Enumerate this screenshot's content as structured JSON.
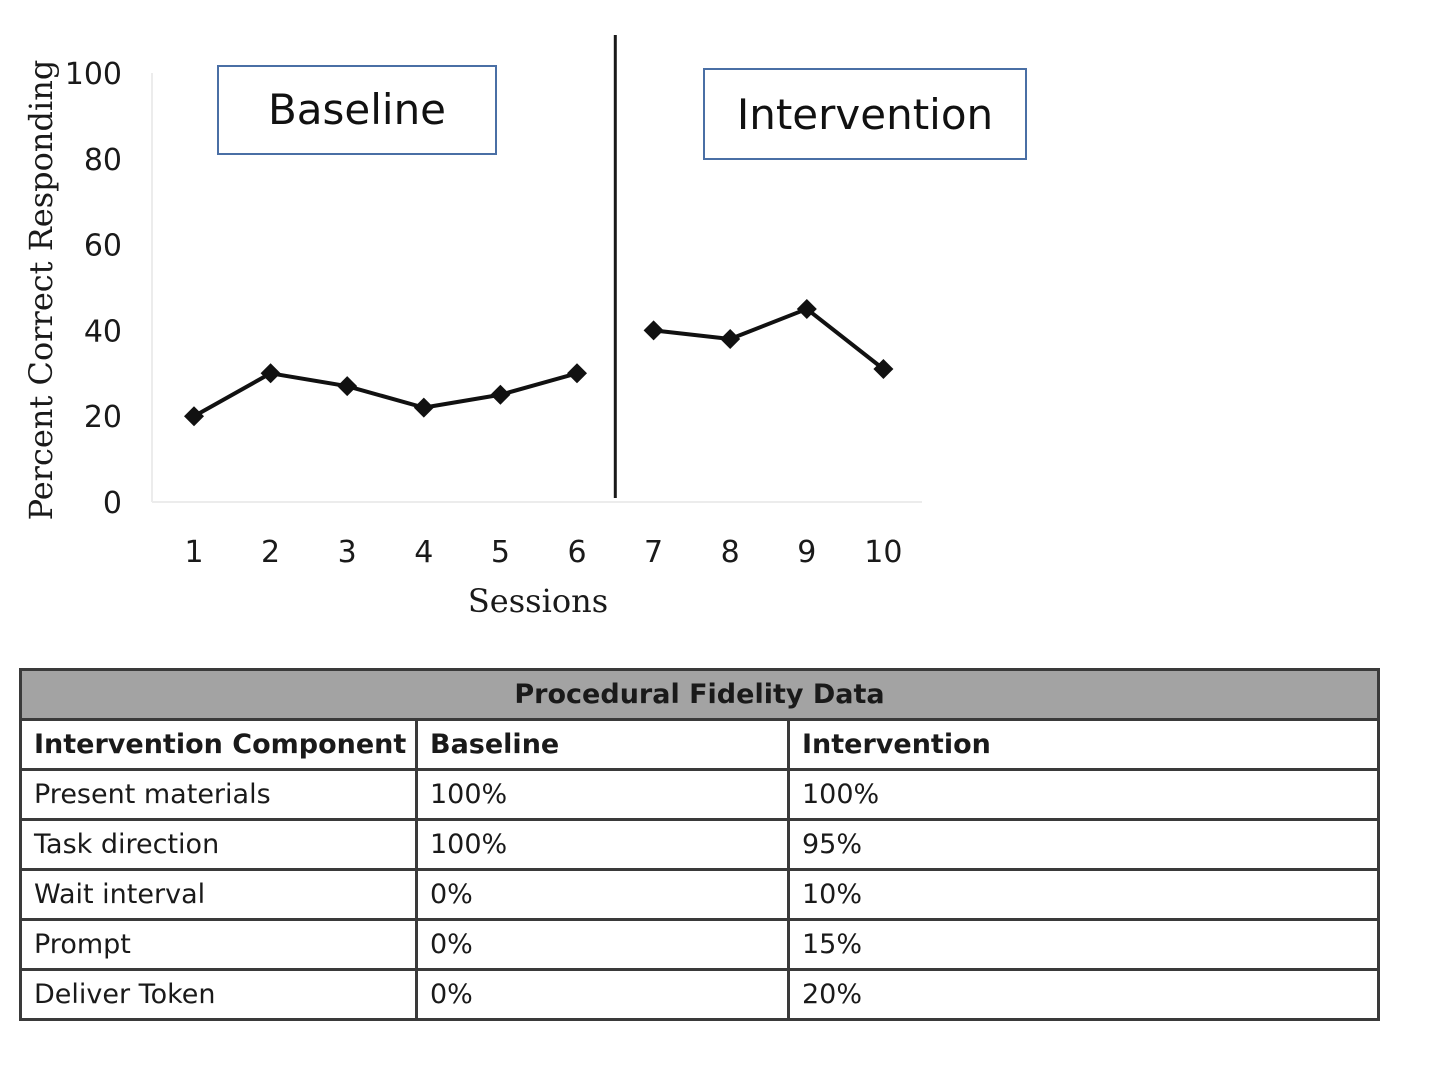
{
  "chart_data": {
    "type": "line",
    "ylabel": "Percent Correct Responding",
    "xlabel": "Sessions",
    "ylim": [
      0,
      100
    ],
    "y_ticks": [
      "0",
      "20",
      "40",
      "60",
      "80",
      "100"
    ],
    "categories": [
      "1",
      "2",
      "3",
      "4",
      "5",
      "6",
      "7",
      "8",
      "9",
      "10"
    ],
    "phases": [
      {
        "label": "Baseline",
        "sessions": [
          1,
          2,
          3,
          4,
          5,
          6
        ],
        "values": [
          20,
          30,
          27,
          22,
          25,
          30
        ]
      },
      {
        "label": "Intervention",
        "sessions": [
          7,
          8,
          9,
          10
        ],
        "values": [
          40,
          38,
          45,
          31
        ]
      }
    ],
    "phase_change_after_session": 6,
    "grid": false,
    "line_color": "#111111",
    "label_box_border": "#4a6fa5"
  },
  "table": {
    "title": "Procedural Fidelity Data",
    "header_bg": "#a3a3a3",
    "columns": [
      "Intervention Component",
      "Baseline",
      "Intervention"
    ],
    "rows": [
      [
        "Present materials",
        "100%",
        "100%"
      ],
      [
        "Task direction",
        "100%",
        "95%"
      ],
      [
        "Wait interval",
        "0%",
        "10%"
      ],
      [
        "Prompt",
        "0%",
        "15%"
      ],
      [
        "Deliver Token",
        "0%",
        "20%"
      ]
    ]
  }
}
